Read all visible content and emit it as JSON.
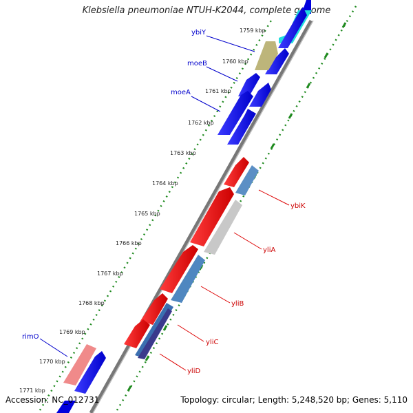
{
  "title": "Klebsiella pneumoniae NTUH-K2044, complete genome",
  "accession": "Accession: NC_012731",
  "topology": "Topology: circular; Length: 5,248,520 bp; Genes: 5,110",
  "colors": {
    "backbone": "#7f7f7f",
    "tick": "#2e8b2e",
    "blue_gene": "#0000ee",
    "red_gene": "#ee0000",
    "label_blue": "#0000cc",
    "label_red": "#cc0000"
  },
  "kbp_labels": [
    "1759 kbp",
    "1760 kbp",
    "1761 kbp",
    "1762 kbp",
    "1763 kbp",
    "1764 kbp",
    "1765 kbp",
    "1766 kbp",
    "1767 kbp",
    "1768 kbp",
    "1769 kbp",
    "1770 kbp",
    "1771 kbp"
  ],
  "gene_labels_left": [
    "ybiY",
    "moeB",
    "moeA",
    "rimO"
  ],
  "gene_labels_right": [
    "ybiK",
    "yliA",
    "yliB",
    "yliC",
    "yliD"
  ]
}
